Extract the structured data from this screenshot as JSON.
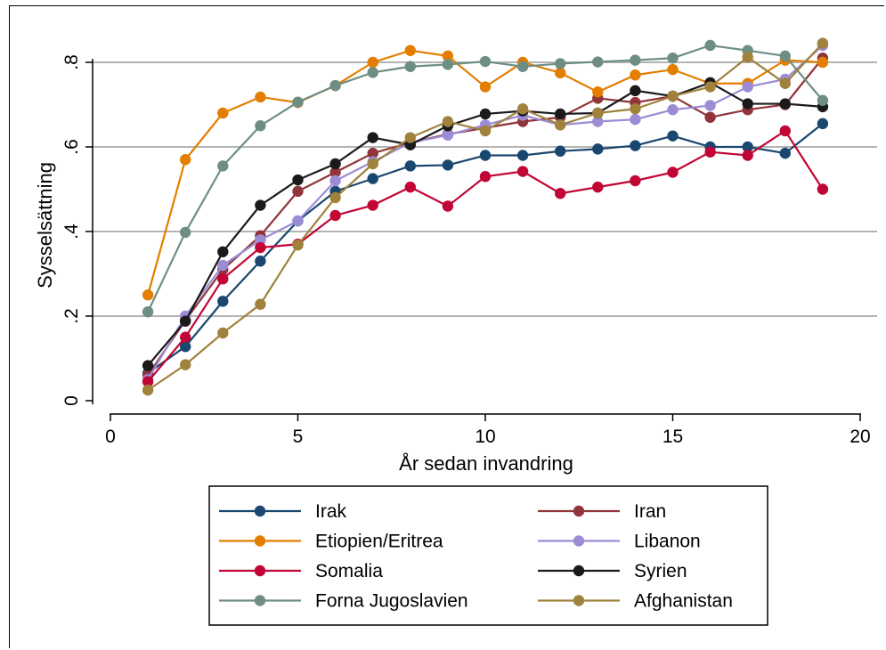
{
  "chart_data": {
    "type": "line",
    "xlabel": "År sedan invandring",
    "ylabel": "Sysselsättning",
    "xlim": [
      0,
      20
    ],
    "ylim": [
      0,
      0.87
    ],
    "xticks": [
      0,
      5,
      10,
      15,
      20
    ],
    "xtick_labels": [
      "0",
      "5",
      "10",
      "15",
      "20"
    ],
    "yticks": [
      0,
      0.2,
      0.4,
      0.6,
      0.8
    ],
    "ytick_labels": [
      "0",
      ".2",
      ".4",
      ".6",
      ".8"
    ],
    "grid": "horizontal",
    "legend_placement": "bottom",
    "x": [
      1,
      2,
      3,
      4,
      5,
      6,
      7,
      8,
      9,
      10,
      11,
      12,
      13,
      14,
      15,
      16,
      17,
      18,
      19
    ],
    "series": [
      {
        "name": "Irak",
        "color": "#1a476f",
        "values": [
          0.065,
          0.128,
          0.235,
          0.33,
          0.425,
          0.495,
          0.525,
          0.555,
          0.557,
          0.58,
          0.58,
          0.59,
          0.595,
          0.603,
          0.626,
          0.6,
          0.6,
          0.585,
          0.655
        ]
      },
      {
        "name": "Iran",
        "color": "#90353b",
        "values": [
          0.06,
          0.19,
          0.31,
          0.39,
          0.495,
          0.54,
          0.585,
          0.61,
          0.63,
          0.645,
          0.66,
          0.67,
          0.715,
          0.705,
          0.72,
          0.67,
          0.688,
          0.7,
          0.81
        ]
      },
      {
        "name": "Etiopien/Eritrea",
        "color": "#e37e00",
        "values": [
          0.25,
          0.57,
          0.68,
          0.718,
          0.705,
          0.745,
          0.8,
          0.828,
          0.815,
          0.742,
          0.8,
          0.775,
          0.73,
          0.77,
          0.783,
          0.75,
          0.75,
          0.805,
          0.8
        ]
      },
      {
        "name": "Libanon",
        "color": "#9c8cd6",
        "values": [
          0.05,
          0.2,
          0.32,
          0.38,
          0.425,
          0.52,
          0.565,
          0.61,
          0.628,
          0.652,
          0.675,
          0.652,
          0.66,
          0.665,
          0.688,
          0.698,
          0.742,
          0.76,
          0.84
        ]
      },
      {
        "name": "Somalia",
        "color": "#c10534",
        "values": [
          0.045,
          0.15,
          0.288,
          0.362,
          0.37,
          0.438,
          0.462,
          0.505,
          0.46,
          0.53,
          0.542,
          0.49,
          0.505,
          0.52,
          0.54,
          0.588,
          0.58,
          0.638,
          0.5
        ]
      },
      {
        "name": "Syrien",
        "color": "#1a1a1a",
        "values": [
          0.083,
          0.188,
          0.352,
          0.462,
          0.522,
          0.56,
          0.622,
          0.605,
          0.65,
          0.678,
          0.685,
          0.678,
          0.68,
          0.733,
          0.72,
          0.752,
          0.702,
          0.702,
          0.695
        ]
      },
      {
        "name": "Forna Jugoslavien",
        "color": "#6e8e84",
        "values": [
          0.21,
          0.398,
          0.555,
          0.65,
          0.706,
          0.745,
          0.776,
          0.79,
          0.795,
          0.802,
          0.79,
          0.797,
          0.801,
          0.805,
          0.81,
          0.84,
          0.828,
          0.815,
          0.71
        ]
      },
      {
        "name": "Afghanistan",
        "color": "#a0823c",
        "values": [
          0.025,
          0.085,
          0.16,
          0.228,
          0.368,
          0.48,
          0.56,
          0.622,
          0.66,
          0.638,
          0.69,
          0.652,
          0.68,
          0.69,
          0.72,
          0.742,
          0.812,
          0.75,
          0.845
        ]
      }
    ]
  }
}
